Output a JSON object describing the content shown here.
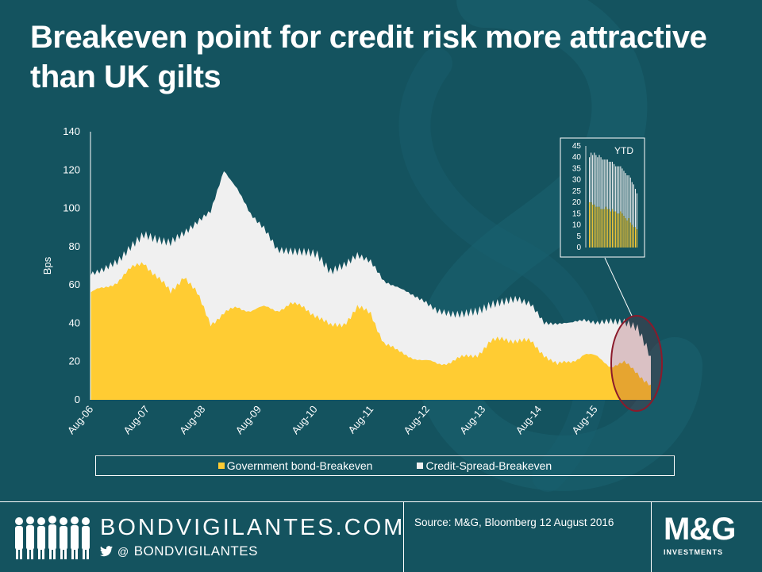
{
  "title": "Breakeven point for credit risk more attractive than UK gilts",
  "colors": {
    "background": "#14535f",
    "government": "#ffcc33",
    "credit": "#f0f0f0",
    "highlight_ring": "#8b1a2b"
  },
  "chart_data": {
    "type": "area",
    "stacked": true,
    "ylabel": "Bps",
    "xlabel": "",
    "ylim": [
      0,
      140
    ],
    "yticks": [
      0,
      20,
      40,
      60,
      80,
      100,
      120,
      140
    ],
    "xticks": [
      "Aug-06",
      "Aug-07",
      "Aug-08",
      "Aug-09",
      "Aug-10",
      "Aug-11",
      "Aug-12",
      "Aug-13",
      "Aug-14",
      "Aug-15"
    ],
    "legend": [
      "Government bond-Breakeven",
      "Credit-Spread-Breakeven"
    ],
    "legend_position": "bottom",
    "x": [
      "Aug-06",
      "Nov-06",
      "Feb-07",
      "May-07",
      "Aug-07",
      "Nov-07",
      "Feb-08",
      "May-08",
      "Aug-08",
      "Oct-08",
      "Dec-08",
      "Feb-09",
      "Apr-09",
      "Jun-09",
      "Aug-09",
      "Nov-09",
      "Feb-10",
      "May-10",
      "Aug-10",
      "Nov-10",
      "Feb-11",
      "May-11",
      "Aug-11",
      "Nov-11",
      "Feb-12",
      "May-12",
      "Aug-12",
      "Nov-12",
      "Feb-13",
      "May-13",
      "Aug-13",
      "Nov-13",
      "Feb-14",
      "May-14",
      "Aug-14",
      "Nov-14",
      "Feb-15",
      "May-15",
      "Aug-15",
      "Nov-15",
      "Feb-16",
      "May-16",
      "Aug-16"
    ],
    "series": [
      {
        "name": "Government bond-Breakeven",
        "values": [
          56,
          58,
          62,
          68,
          72,
          64,
          56,
          65,
          55,
          40,
          45,
          48,
          47,
          48,
          47,
          50,
          48,
          44,
          38,
          40,
          48,
          45,
          30,
          25,
          23,
          20,
          19,
          20,
          22,
          24,
          30,
          32,
          31,
          30,
          24,
          18,
          20,
          24,
          22,
          18,
          19,
          14,
          8
        ]
      },
      {
        "name": "Credit-Spread-Breakeven",
        "values": [
          10,
          10,
          10,
          12,
          14,
          20,
          26,
          22,
          38,
          58,
          75,
          62,
          50,
          42,
          31,
          28,
          29,
          32,
          29,
          30,
          28,
          27,
          32,
          34,
          32,
          32,
          27,
          25,
          23,
          22,
          20,
          19,
          22,
          20,
          16,
          22,
          20,
          18,
          18,
          23,
          22,
          23,
          15
        ]
      }
    ],
    "highlight": "YTD",
    "inset": {
      "title": "YTD",
      "type": "bar",
      "stacked": true,
      "ylim": [
        0,
        45
      ],
      "yticks": [
        0,
        5,
        10,
        15,
        20,
        25,
        30,
        35,
        40,
        45
      ],
      "series": [
        {
          "name": "Government bond-Breakeven",
          "values": [
            20,
            20,
            19,
            19,
            18,
            18,
            18,
            17,
            17,
            17,
            18,
            17,
            17,
            16,
            17,
            16,
            16,
            15,
            15,
            16,
            15,
            14,
            13,
            12,
            13,
            11,
            10,
            9,
            9,
            8
          ]
        },
        {
          "name": "Credit-Spread-Breakeven",
          "values": [
            20,
            22,
            22,
            23,
            23,
            22,
            23,
            23,
            22,
            22,
            21,
            22,
            21,
            22,
            21,
            21,
            20,
            21,
            21,
            20,
            20,
            20,
            20,
            20,
            19,
            20,
            19,
            19,
            17,
            16
          ]
        }
      ]
    }
  },
  "footer": {
    "site": "BONDVIGILANTES.COM",
    "social_at": "@",
    "social_handle": "BONDVIGILANTES",
    "source": "Source: M&G,  Bloomberg 12 August 2016",
    "logo_text": "M&G",
    "logo_sub": "INVESTMENTS"
  }
}
